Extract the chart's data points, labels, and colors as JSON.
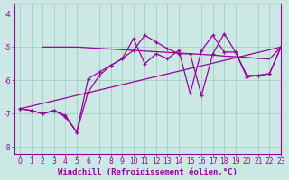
{
  "line_color": "#990099",
  "bg_color": "#cce8e4",
  "grid_color": "#99ccbb",
  "xlabel": "Windchill (Refroidissement éolien,°C)",
  "xlim": [
    -0.5,
    23
  ],
  "ylim": [
    -8.2,
    -3.7
  ],
  "yticks": [
    -8,
    -7,
    -6,
    -5,
    -4
  ],
  "xticks": [
    0,
    1,
    2,
    3,
    4,
    5,
    6,
    7,
    8,
    9,
    10,
    11,
    12,
    13,
    14,
    15,
    16,
    17,
    18,
    19,
    20,
    21,
    22,
    23
  ],
  "tick_fontsize": 5.5,
  "xlabel_fontsize": 6.5,
  "line1_x": [
    0,
    1,
    2,
    3,
    4,
    5,
    6,
    7,
    8,
    9,
    10,
    11,
    12,
    13,
    14,
    15,
    16,
    17,
    18,
    19,
    20,
    21,
    22,
    23
  ],
  "line1_y": [
    -6.85,
    -6.9,
    -7.0,
    -6.9,
    -7.1,
    -7.55,
    -6.35,
    -5.85,
    -5.55,
    -5.35,
    -4.75,
    -5.5,
    -5.2,
    -5.35,
    -5.1,
    -6.4,
    -5.1,
    -4.65,
    -5.15,
    -5.15,
    -5.85,
    -5.85,
    -5.8,
    -5.0
  ],
  "line2_x": [
    2,
    3,
    5,
    6,
    7,
    8,
    9,
    10,
    11,
    12,
    13,
    14,
    15,
    16,
    17,
    18,
    19,
    20,
    21,
    22,
    23
  ],
  "line2_y": [
    -5.0,
    -5.0,
    -5.0,
    -5.02,
    -5.04,
    -5.06,
    -5.08,
    -5.1,
    -5.12,
    -5.14,
    -5.16,
    -5.18,
    -5.2,
    -5.22,
    -5.24,
    -5.27,
    -5.29,
    -5.31,
    -5.34,
    -5.36,
    -5.0
  ],
  "line3_x": [
    0,
    1,
    2,
    3,
    4,
    5,
    6,
    7,
    8,
    9,
    10,
    11,
    12,
    13,
    14,
    15,
    16,
    17,
    18,
    19,
    20,
    21,
    22,
    23
  ],
  "line3_y": [
    -6.85,
    -6.9,
    -7.0,
    -6.9,
    -7.05,
    -7.55,
    -5.95,
    -5.75,
    -5.55,
    -5.35,
    -5.1,
    -4.65,
    -4.85,
    -5.05,
    -5.2,
    -5.2,
    -6.45,
    -5.2,
    -4.6,
    -5.15,
    -5.9,
    -5.85,
    -5.8,
    -5.0
  ]
}
